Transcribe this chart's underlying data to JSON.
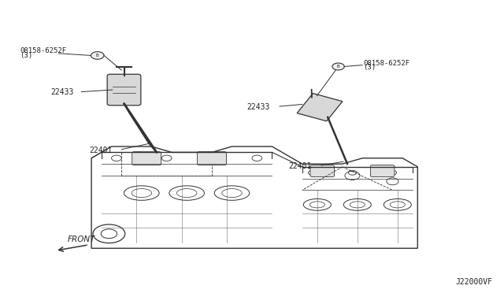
{
  "bg_color": "#ffffff",
  "diagram_id": "J22000VF",
  "text_color": "#222222",
  "line_color": "#333333",
  "font_size": 7,
  "front_label": "FRONT",
  "left_part1_label1": "08158-6252F",
  "left_part1_label2": "(3)",
  "left_part2_label": "22433",
  "left_part3_label": "22401",
  "right_part1_label1": "08158-6252F",
  "right_part1_label2": "(3)",
  "right_part2_label": "22433",
  "right_part3_label": "22401"
}
